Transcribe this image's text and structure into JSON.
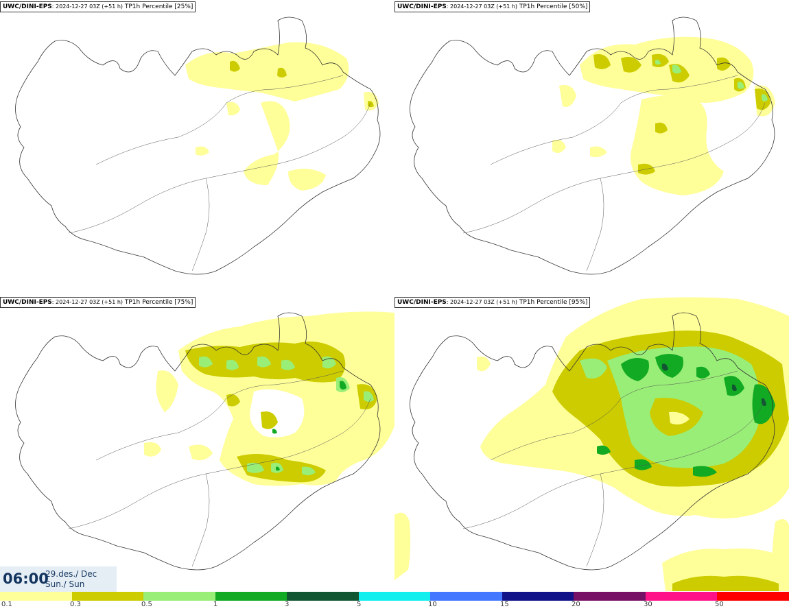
{
  "panels": [
    {
      "model": "UWC/DINI-EPS",
      "run": ": 2024-12-27 03Z (+51 h)",
      "desc": " TP1h Percentile [25%]"
    },
    {
      "model": "UWC/DINI-EPS",
      "run": ": 2024-12-27 03Z (+51 h)",
      "desc": " TP1h Percentile [50%]"
    },
    {
      "model": "UWC/DINI-EPS",
      "run": ": 2024-12-27 03Z (+51 h)",
      "desc": " TP1h Percentile [75%]"
    },
    {
      "model": "UWC/DINI-EPS",
      "run": ": 2024-12-27 03Z (+51 h)",
      "desc": " TP1h Percentile [95%]"
    }
  ],
  "valid_time": {
    "time": "06:00",
    "date_line1": "29.des./ Dec",
    "date_line2": "Sun./ Sun"
  },
  "legend": {
    "colors": [
      "#ffff99",
      "#cccc00",
      "#99ee77",
      "#11aa22",
      "#115533",
      "#11eeee",
      "#4477ff",
      "#111188",
      "#771166",
      "#ff1188",
      "#ff0000"
    ],
    "ticks": [
      "0.1",
      "0.3",
      "0.5",
      "1",
      "3",
      "5",
      "10",
      "15",
      "20",
      "30",
      "50"
    ]
  }
}
